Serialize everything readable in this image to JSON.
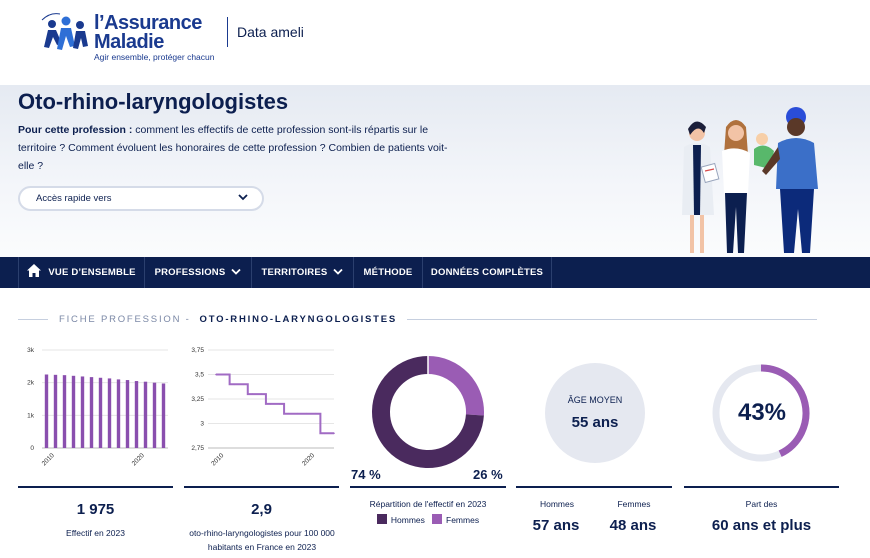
{
  "header": {
    "logo_line1": "l’Assurance",
    "logo_line2": "Maladie",
    "logo_tagline": "Agir ensemble, protéger chacun",
    "brand": "Data ameli"
  },
  "hero": {
    "title": "Oto-rhino-laryngologistes",
    "desc_lead": "Pour cette profession :",
    "desc_rest": " comment les effectifs de cette profession sont-ils répartis sur le territoire ? Comment évoluent les honoraires de cette profession ? Combien de patients voit-elle ?",
    "quick_access": "Accès rapide vers"
  },
  "nav": {
    "items": [
      {
        "label": "VUE D’ENSEMBLE",
        "icon": "home-icon"
      },
      {
        "label": "PROFESSIONS",
        "icon": "chevron-down-icon"
      },
      {
        "label": "TERRITOIRES",
        "icon": "chevron-down-icon"
      },
      {
        "label": "MÉTHODE"
      },
      {
        "label": "DONNÉES COMPLÈTES"
      }
    ]
  },
  "fiche": {
    "prefix": "FICHE PROFESSION -",
    "name": "OTO-RHINO-LARYNGOLOGISTES"
  },
  "cards": {
    "effectif_value": "1 975",
    "effectif_label": "Effectif en 2023",
    "density_value": "2,9",
    "density_label": "oto-rhino-laryngologistes pour 100 000 habitants en France en 2023",
    "repartition_label": "Répartition de l'effectif en 2023",
    "hommes_pct": "74 %",
    "femmes_pct": "26 %",
    "legend_hommes": "Hommes",
    "legend_femmes": "Femmes",
    "age_title": "ÂGE MOYEN",
    "age_value": "55 ans",
    "age_hommes_label": "Hommes",
    "age_hommes_value": "57 ans",
    "age_femmes_label": "Femmes",
    "age_femmes_value": "48 ans",
    "share_value": "43%",
    "share_label": "Part des",
    "share_desc": "60 ans et plus"
  },
  "colors": {
    "navy": "#0c1f4f",
    "purple_dark": "#4a2a5e",
    "purple_light": "#9a5cb4",
    "bar": "#8a4fae",
    "line": "#a16bc4"
  },
  "chart_data": [
    {
      "type": "bar",
      "x": [
        2010,
        2011,
        2012,
        2013,
        2014,
        2015,
        2016,
        2017,
        2018,
        2019,
        2020,
        2021,
        2022,
        2023
      ],
      "values": [
        2250,
        2240,
        2230,
        2210,
        2190,
        2170,
        2150,
        2130,
        2100,
        2080,
        2050,
        2030,
        2000,
        1975
      ],
      "yticks": [
        "0",
        "1k",
        "2k",
        "3k"
      ],
      "ylim": [
        0,
        3000
      ],
      "xticks": [
        "2010",
        "2020"
      ]
    },
    {
      "type": "line",
      "x": [
        2010,
        2011,
        2012,
        2013,
        2014,
        2015,
        2016,
        2017,
        2018,
        2019,
        2020,
        2021,
        2022,
        2023
      ],
      "values": [
        3.5,
        3.5,
        3.4,
        3.4,
        3.3,
        3.3,
        3.2,
        3.2,
        3.1,
        3.1,
        3.1,
        3.1,
        2.9,
        2.9
      ],
      "yticks": [
        "2,75",
        "3",
        "3,25",
        "3,5",
        "3,75"
      ],
      "ylim": [
        2.75,
        3.75
      ],
      "xticks": [
        "2010",
        "2020"
      ]
    },
    {
      "type": "pie",
      "categories": [
        "Hommes",
        "Femmes"
      ],
      "values": [
        74,
        26
      ]
    },
    {
      "type": "pie",
      "categories": [
        "60 ans et plus"
      ],
      "values": [
        43
      ]
    }
  ]
}
